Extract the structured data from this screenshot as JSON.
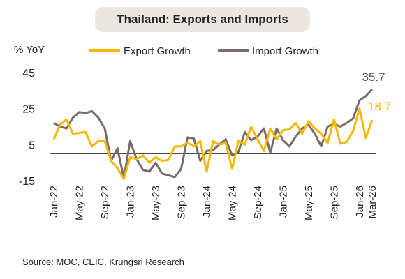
{
  "chart_data": {
    "type": "line",
    "title": "Thailand: Exports and Imports",
    "ylabel": "% YoY",
    "ylim": [
      -15,
      45
    ],
    "yticks": [
      45,
      25,
      5,
      -15
    ],
    "zero_line": 0,
    "grid": false,
    "legend_position": "top",
    "x": [
      "Jan-22",
      "Feb-22",
      "Mar-22",
      "Apr-22",
      "May-22",
      "Jun-22",
      "Jul-22",
      "Aug-22",
      "Sep-22",
      "Oct-22",
      "Nov-22",
      "Dec-22",
      "Jan-23",
      "Feb-23",
      "Mar-23",
      "Apr-23",
      "May-23",
      "Jun-23",
      "Jul-23",
      "Aug-23",
      "Sep-23",
      "Oct-23",
      "Nov-23",
      "Dec-23",
      "Jan-24",
      "Feb-24",
      "Mar-24",
      "Apr-24",
      "May-24",
      "Jun-24",
      "Jul-24",
      "Aug-24",
      "Sep-24",
      "Oct-24",
      "Nov-24",
      "Dec-24",
      "Jan-25",
      "Feb-25",
      "Mar-25",
      "Apr-25",
      "May-25",
      "Jun-25",
      "Jul-25",
      "Aug-25",
      "Sep-25",
      "Oct-25",
      "Nov-25",
      "Dec-25",
      "Jan-26",
      "Feb-26",
      "Mar-26"
    ],
    "xticks": [
      "Jan-22",
      "May-22",
      "Sep-22",
      "Jan-23",
      "May-23",
      "Sep-23",
      "Jan-24",
      "May-24",
      "Sep-24",
      "Jan-25",
      "May-25",
      "Sep-25",
      "Jan-26",
      "Mar-26"
    ],
    "series": [
      {
        "name": "Export Growth",
        "color": "#f5b800",
        "values": [
          8,
          16,
          19,
          11,
          11.5,
          12,
          4,
          7,
          7,
          -4,
          -8,
          -14,
          -2,
          -3,
          -1,
          -5,
          -2,
          -4,
          -3.5,
          4,
          4,
          6,
          4,
          7,
          -10,
          7,
          5,
          6,
          -8.5,
          7,
          5,
          15,
          8,
          1.5,
          14,
          8,
          13,
          13.5,
          17,
          11,
          18,
          14,
          11,
          6,
          19,
          5.5,
          6.5,
          12.5,
          25,
          8.7,
          18.7
        ],
        "end_label": "18.7"
      },
      {
        "name": "Import Growth",
        "color": "#7b6a66",
        "values": [
          17,
          15,
          14,
          20,
          23,
          22.5,
          23.5,
          20,
          14,
          -4,
          3,
          -13.5,
          7,
          -3,
          -9,
          -10,
          -5,
          -11,
          -12,
          -13,
          -8.5,
          9,
          8.5,
          -4,
          1.5,
          2,
          5,
          8,
          -1,
          1,
          12,
          7.5,
          9.5,
          14,
          0.5,
          14,
          7.5,
          4,
          9.5,
          14,
          16,
          11,
          4,
          15,
          16.5,
          15,
          17,
          19.5,
          29.5,
          32,
          35.7
        ],
        "end_label": "35.7"
      }
    ],
    "source": "Source: MOC, CEIC, Krungsri Research"
  }
}
